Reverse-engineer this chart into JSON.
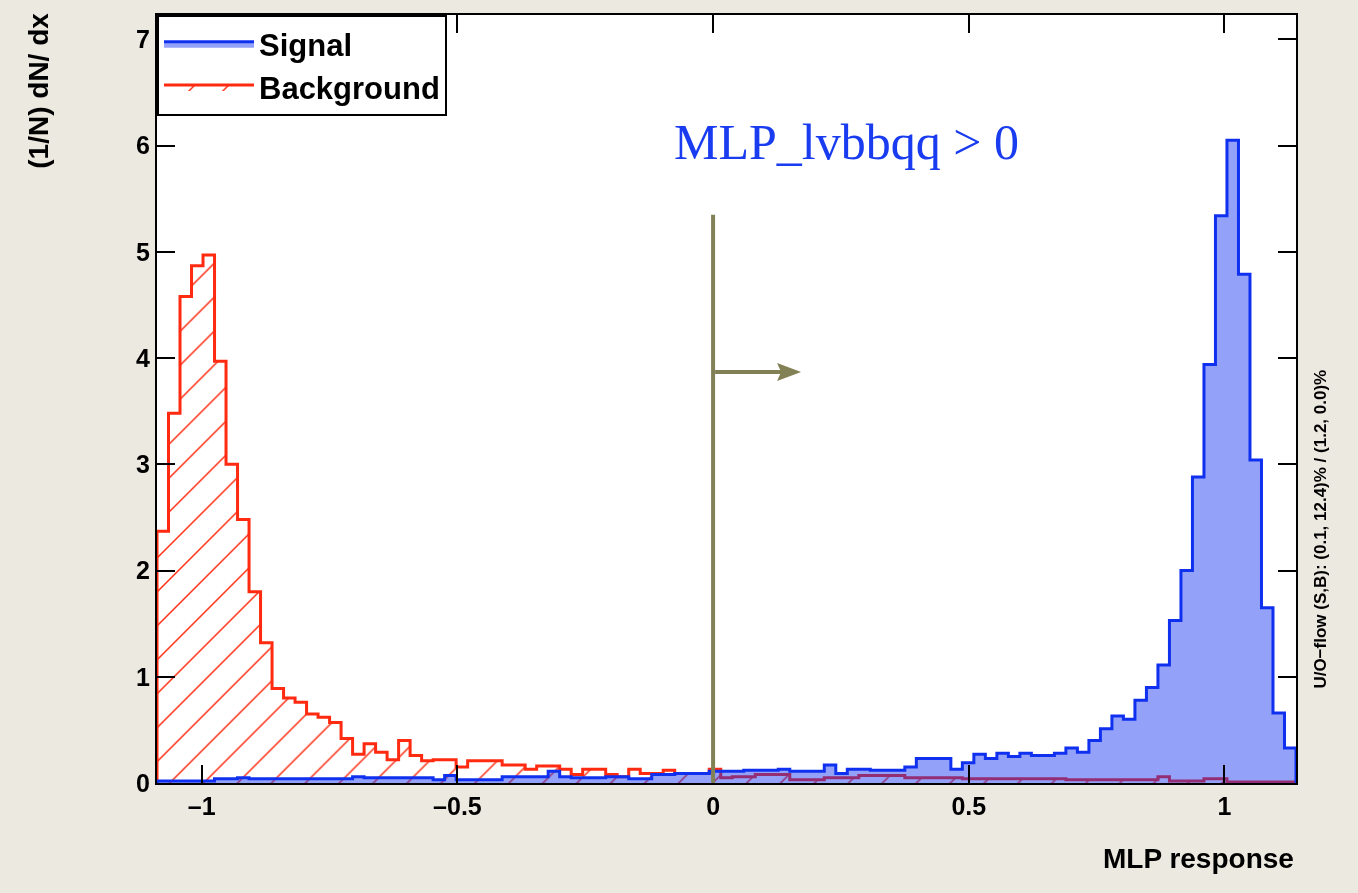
{
  "chart_data": {
    "type": "histogram",
    "xlabel": "MLP response",
    "ylabel": "(1/N) dN/ dx",
    "annotations": [
      "MLP_lvbbqq > 0",
      "U/O−flow (S,B): (0.1, 12.4)% / (1.2, 0.0)%"
    ],
    "bins": [
      -1.0875,
      -1.065,
      -1.0425,
      -1.02,
      -0.9975,
      -0.975,
      -0.9525,
      -0.93,
      -0.9075,
      -0.885,
      -0.8625,
      -0.84,
      -0.8175,
      -0.795,
      -0.7725,
      -0.75,
      -0.7275,
      -0.705,
      -0.6825,
      -0.66,
      -0.6375,
      -0.615,
      -0.5925,
      -0.57,
      -0.5475,
      -0.525,
      -0.5025,
      -0.48,
      -0.4575,
      -0.435,
      -0.4125,
      -0.39,
      -0.3675,
      -0.345,
      -0.3225,
      -0.3,
      -0.2775,
      -0.255,
      -0.2325,
      -0.21,
      -0.1875,
      -0.165,
      -0.1425,
      -0.12,
      -0.0975,
      -0.075,
      -0.0525,
      -0.03,
      -0.0075,
      0.015,
      0.0375,
      0.06,
      0.0825,
      0.105,
      0.1275,
      0.15,
      0.1725,
      0.195,
      0.2175,
      0.24,
      0.2625,
      0.285,
      0.3075,
      0.33,
      0.3525,
      0.375,
      0.3975,
      0.42,
      0.4425,
      0.465,
      0.4875,
      0.51,
      0.5325,
      0.555,
      0.5775,
      0.6,
      0.6225,
      0.645,
      0.6675,
      0.69,
      0.7125,
      0.735,
      0.7575,
      0.78,
      0.8025,
      0.825,
      0.8475,
      0.87,
      0.8925,
      0.915,
      0.9375,
      0.96,
      0.9825,
      1.005,
      1.0275,
      1.05,
      1.0725,
      1.095,
      1.1175,
      1.14
    ],
    "series": [
      {
        "name": "Signal",
        "color": "#1030f0",
        "values": [
          0.02,
          0.02,
          0.02,
          0.02,
          0.02,
          0.04,
          0.04,
          0.05,
          0.04,
          0.04,
          0.04,
          0.04,
          0.04,
          0.04,
          0.04,
          0.04,
          0.04,
          0.06,
          0.05,
          0.05,
          0.05,
          0.05,
          0.05,
          0.05,
          0.03,
          0.07,
          0.03,
          0.03,
          0.03,
          0.03,
          0.06,
          0.06,
          0.06,
          0.06,
          0.11,
          0.06,
          0.05,
          0.05,
          0.05,
          0.06,
          0.06,
          0.04,
          0.04,
          0.08,
          0.08,
          0.09,
          0.09,
          0.09,
          0.11,
          0.11,
          0.11,
          0.12,
          0.12,
          0.12,
          0.13,
          0.11,
          0.11,
          0.11,
          0.17,
          0.09,
          0.13,
          0.13,
          0.12,
          0.12,
          0.12,
          0.15,
          0.23,
          0.23,
          0.23,
          0.13,
          0.19,
          0.27,
          0.23,
          0.28,
          0.25,
          0.28,
          0.26,
          0.26,
          0.28,
          0.33,
          0.29,
          0.4,
          0.51,
          0.63,
          0.6,
          0.78,
          0.9,
          1.11,
          1.53,
          2.0,
          2.88,
          3.94,
          5.34,
          6.05,
          4.79,
          3.04,
          1.65,
          0.66,
          0.33
        ]
      },
      {
        "name": "Background",
        "color": "#ff2a10",
        "values": [
          2.37,
          3.48,
          4.58,
          4.87,
          4.97,
          3.97,
          3.0,
          2.48,
          1.8,
          1.32,
          0.89,
          0.8,
          0.76,
          0.65,
          0.62,
          0.57,
          0.42,
          0.27,
          0.37,
          0.29,
          0.22,
          0.4,
          0.26,
          0.21,
          0.22,
          0.22,
          0.15,
          0.21,
          0.21,
          0.21,
          0.17,
          0.17,
          0.13,
          0.16,
          0.16,
          0.13,
          0.08,
          0.13,
          0.13,
          0.08,
          0.06,
          0.13,
          0.09,
          0.09,
          0.12,
          0.09,
          0.09,
          0.09,
          0.13,
          0.05,
          0.06,
          0.06,
          0.08,
          0.08,
          0.08,
          0.03,
          0.03,
          0.03,
          0.05,
          0.05,
          0.05,
          0.07,
          0.07,
          0.07,
          0.07,
          0.05,
          0.05,
          0.05,
          0.05,
          0.05,
          0.04,
          0.04,
          0.04,
          0.04,
          0.04,
          0.04,
          0.04,
          0.04,
          0.04,
          0.03,
          0.03,
          0.03,
          0.03,
          0.03,
          0.03,
          0.03,
          0.03,
          0.06,
          0.02,
          0.02,
          0.02,
          0.04,
          0.04,
          0.01,
          0.01,
          0.01,
          0.01,
          0.01,
          0.01
        ]
      }
    ],
    "xlim": [
      -1.0875,
      1.14
    ],
    "ylim": [
      0,
      7.23
    ],
    "xticks": [
      {
        "value": -1,
        "label": "–1"
      },
      {
        "value": -0.5,
        "label": "–0.5"
      },
      0,
      0.5,
      1
    ],
    "yticks": [
      0,
      1,
      2,
      3,
      4,
      5,
      6,
      7
    ],
    "ref_lines": [
      {
        "axis": "x",
        "value": 0,
        "color": "#828155"
      }
    ],
    "legend": "top left",
    "grid": false
  }
}
